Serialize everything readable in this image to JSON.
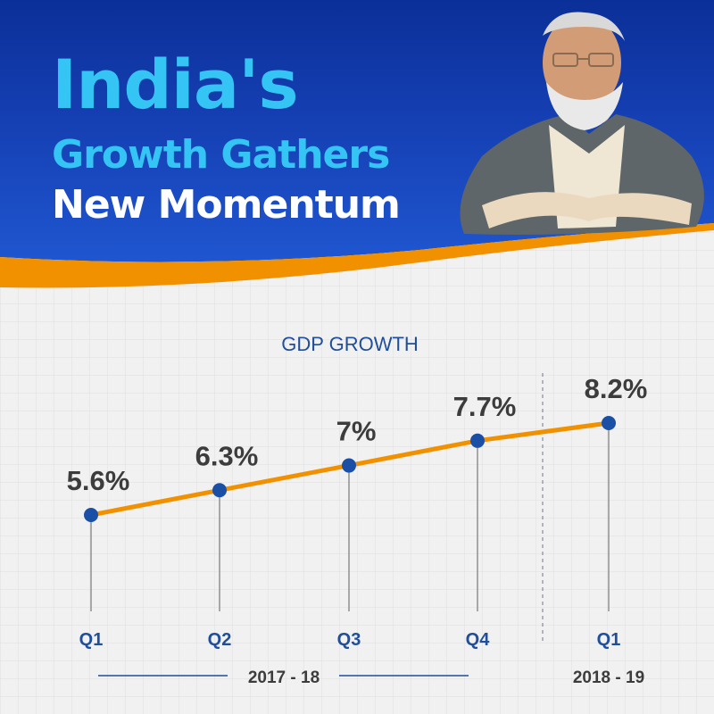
{
  "header": {
    "line1": "India's",
    "line2": "Growth Gathers",
    "line3": "New Momentum"
  },
  "colors": {
    "banner_blue": "#1743b8",
    "headline_cyan": "#35c5f4",
    "headline_white": "#ffffff",
    "accent_orange": "#f29100",
    "point_blue": "#1b4fa5",
    "label_dark": "#3c3c3c",
    "axis_blue": "#1f4e9a"
  },
  "portrait": {
    "icon": "portrait-icon"
  },
  "chart_data": {
    "type": "line",
    "title": "GDP GROWTH",
    "categories": [
      "Q1",
      "Q2",
      "Q3",
      "Q4",
      "Q1"
    ],
    "series": [
      {
        "values": [
          5.6,
          6.3,
          7.0,
          7.7,
          8.2
        ]
      }
    ],
    "data_labels": [
      "5.6%",
      "6.3%",
      "7%",
      "7.7%",
      "8.2%"
    ],
    "year_groups": [
      {
        "label": "2017 - 18",
        "categories": [
          "Q1",
          "Q2",
          "Q3",
          "Q4"
        ]
      },
      {
        "label": "2018 - 19",
        "categories": [
          "Q1"
        ]
      }
    ],
    "unit": "%",
    "grid": true
  }
}
